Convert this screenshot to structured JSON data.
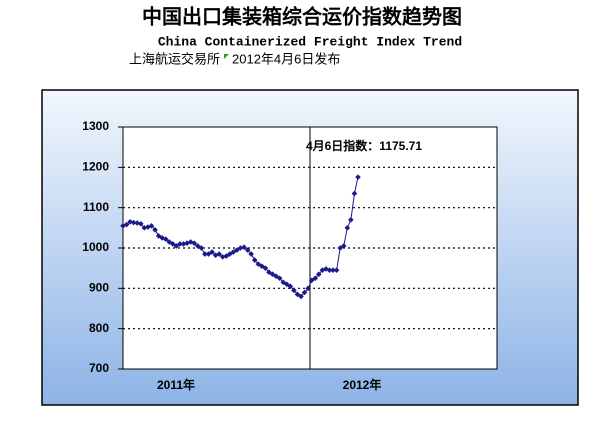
{
  "chart_data": {
    "type": "line",
    "title": "中国出口集装箱综合运价指数趋势图",
    "subtitle": "China Containerized Freight Index Trend",
    "source": "上海航运交易所",
    "publish_date": "2012年4月6日发布",
    "annotation": "4月6日指数：1175.71",
    "x_labels": [
      "2011年",
      "2012年"
    ],
    "values": [
      1055,
      1058,
      1065,
      1063,
      1062,
      1060,
      1050,
      1052,
      1055,
      1045,
      1030,
      1025,
      1022,
      1015,
      1010,
      1005,
      1010,
      1010,
      1012,
      1015,
      1012,
      1005,
      1000,
      985,
      985,
      990,
      982,
      985,
      978,
      980,
      985,
      990,
      995,
      1000,
      1002,
      995,
      985,
      970,
      960,
      955,
      950,
      940,
      935,
      930,
      925,
      915,
      910,
      905,
      895,
      885,
      880,
      890,
      900,
      920,
      925,
      935,
      945,
      948,
      945,
      945,
      945,
      1000,
      1005,
      1050,
      1070,
      1135,
      1175.71
    ],
    "color": "#1a1a8c",
    "ylim": [
      700,
      1300
    ],
    "yticks": [
      700,
      800,
      900,
      1000,
      1100,
      1200,
      1300
    ],
    "grid": true
  }
}
